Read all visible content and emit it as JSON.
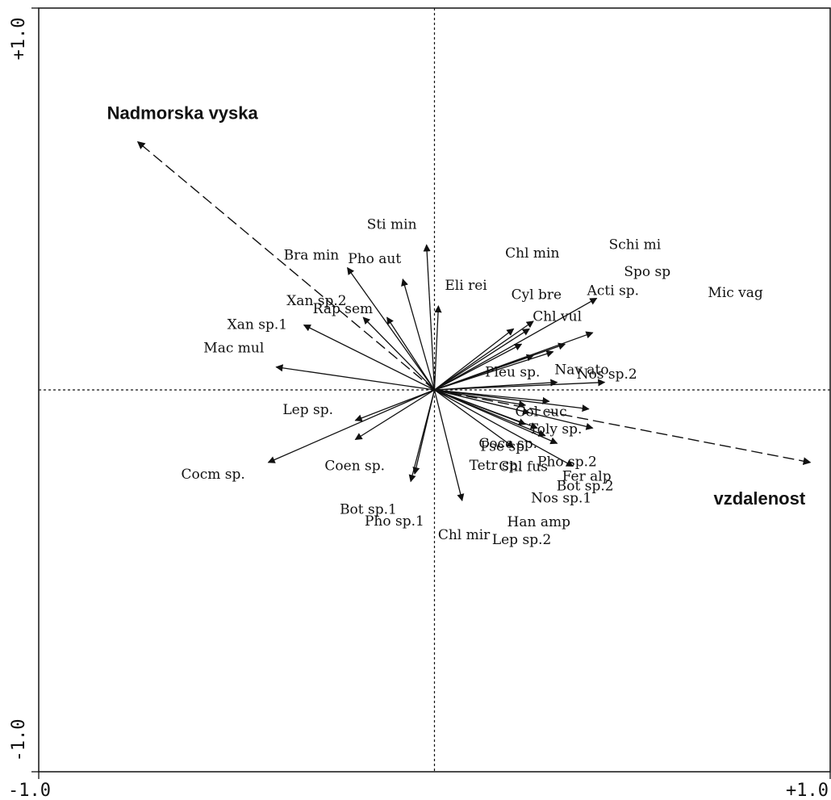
{
  "chart_data": {
    "type": "scatter",
    "xlim": [
      -1.0,
      1.0
    ],
    "ylim": [
      -1.0,
      1.0
    ],
    "x_ticks": [
      {
        "value": -1.0,
        "label": "-1.0"
      },
      {
        "value": 1.0,
        "label": "+1.0"
      }
    ],
    "y_ticks": [
      {
        "value": -1.0,
        "label": "-1.0"
      },
      {
        "value": 1.0,
        "label": "+1.0"
      }
    ],
    "grid": false,
    "zero_lines": true,
    "environmental_vectors": [
      {
        "label": "Nadmorska vyska",
        "x": -0.75,
        "y": 0.65
      },
      {
        "label": "vzdalenost",
        "x": 0.95,
        "y": -0.19
      }
    ],
    "species": [
      {
        "label": "Sti min",
        "x": -0.02,
        "y": 0.38
      },
      {
        "label": "Pho aut",
        "x": -0.08,
        "y": 0.29
      },
      {
        "label": "Bra min",
        "x": -0.22,
        "y": 0.32
      },
      {
        "label": "Rap sem",
        "x": -0.12,
        "y": 0.19
      },
      {
        "label": "Eli rei",
        "x": 0.01,
        "y": 0.22
      },
      {
        "label": "Xan sp.2",
        "x": -0.18,
        "y": 0.19
      },
      {
        "label": "Xan sp.1",
        "x": -0.33,
        "y": 0.17
      },
      {
        "label": "Mac mul",
        "x": -0.4,
        "y": 0.06
      },
      {
        "label": "Lep sp.",
        "x": -0.2,
        "y": -0.08
      },
      {
        "label": "Coen sp.",
        "x": -0.2,
        "y": -0.13
      },
      {
        "label": "Cocm sp.",
        "x": -0.42,
        "y": -0.19
      },
      {
        "label": "Bot sp.1",
        "x": -0.06,
        "y": -0.24
      },
      {
        "label": "Pho sp.1",
        "x": -0.05,
        "y": -0.22
      },
      {
        "label": "Chl mir",
        "x": 0.07,
        "y": -0.29
      },
      {
        "label": "Tetr sp.",
        "x": 0.2,
        "y": -0.15
      },
      {
        "label": "Nos sp.1",
        "x": 0.35,
        "y": -0.2
      },
      {
        "label": "Han amp",
        "x": 0.31,
        "y": -0.14
      },
      {
        "label": "Lep sp.2",
        "x": 0.28,
        "y": -0.12
      },
      {
        "label": "Pse sp.",
        "x": 0.23,
        "y": -0.09
      },
      {
        "label": "Pho sp.2",
        "x": 0.26,
        "y": -0.1
      },
      {
        "label": "Fer alp",
        "x": 0.4,
        "y": -0.1
      },
      {
        "label": "Bot sp.2",
        "x": 0.39,
        "y": -0.05
      },
      {
        "label": "Chl fus",
        "x": 0.24,
        "y": -0.06
      },
      {
        "label": "Cocc sp.",
        "x": 0.23,
        "y": -0.04
      },
      {
        "label": "Toly sp.",
        "x": 0.29,
        "y": -0.03
      },
      {
        "label": "Nav ato",
        "x": 0.43,
        "y": 0.02
      },
      {
        "label": "Col cuc",
        "x": 0.31,
        "y": 0.02
      },
      {
        "label": "Pleu sp.",
        "x": 0.25,
        "y": 0.09
      },
      {
        "label": "Nos sp.2",
        "x": 0.4,
        "y": 0.15
      },
      {
        "label": "Acti sp.",
        "x": 0.41,
        "y": 0.24
      },
      {
        "label": "Chl vul",
        "x": 0.24,
        "y": 0.16
      },
      {
        "label": "Cyl bre",
        "x": 0.2,
        "y": 0.16
      },
      {
        "label": "Chl min",
        "x": 0.25,
        "y": 0.18
      },
      {
        "label": "Schi mi",
        "x": 0.3,
        "y": 0.1
      },
      {
        "label": "Spo sp",
        "x": 0.33,
        "y": 0.12
      },
      {
        "label": "Mic vag",
        "x": 0.22,
        "y": 0.12
      }
    ]
  },
  "style": {
    "line_color": "#111111",
    "background": "#ffffff"
  }
}
